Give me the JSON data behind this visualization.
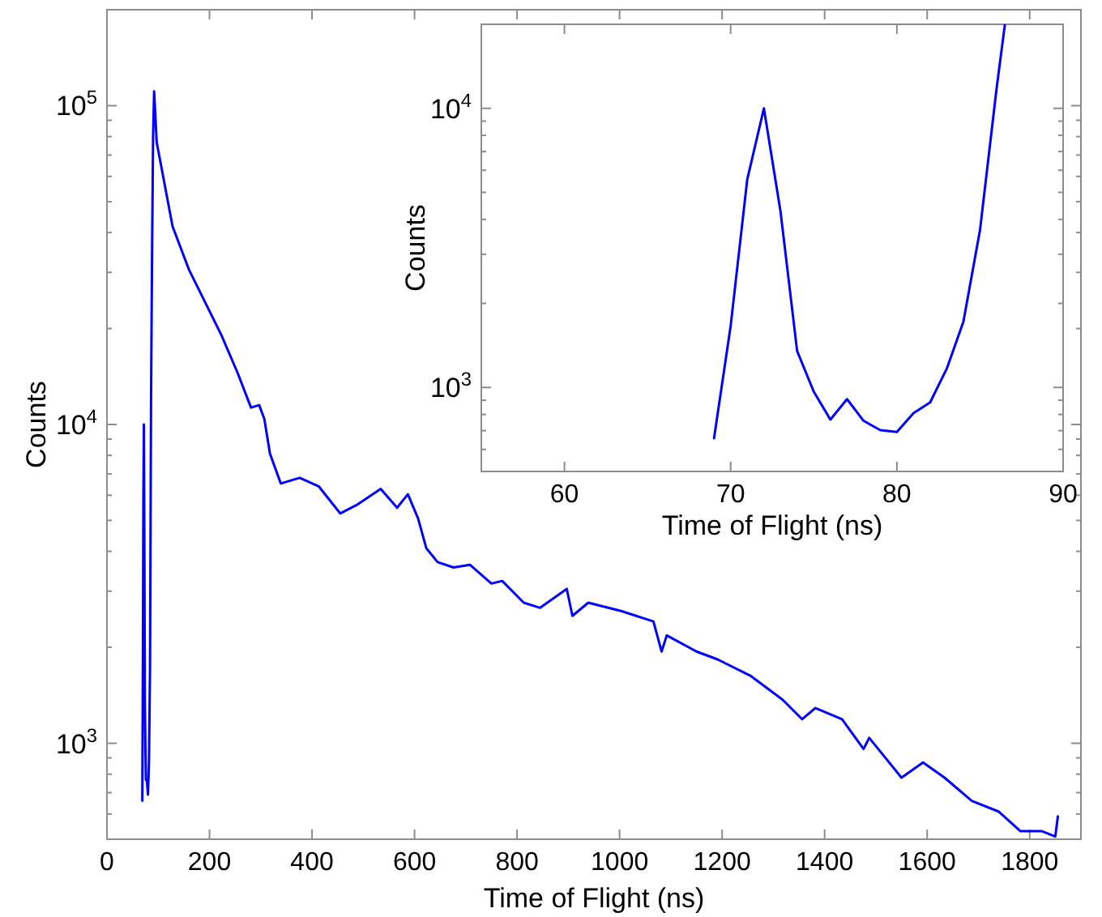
{
  "chart_data": [
    {
      "type": "line",
      "xlabel": "Time of Flight (ns)",
      "ylabel": "Counts",
      "log": "y",
      "grid": false,
      "marker": "none",
      "line_style": "solid",
      "xlim": [
        0,
        1900
      ],
      "xticks": [
        0,
        200,
        400,
        600,
        800,
        1000,
        1200,
        1400,
        1600,
        1800
      ],
      "ylim": [
        500,
        200000
      ],
      "yticks": [
        {
          "value": 600,
          "label": null
        },
        {
          "value": 700,
          "label": null
        },
        {
          "value": 800,
          "label": null
        },
        {
          "value": 900,
          "label": null
        },
        {
          "value": 1000,
          "label": "10$^{3}$"
        },
        {
          "value": 2000,
          "label": null
        },
        {
          "value": 3000,
          "label": null
        },
        {
          "value": 4000,
          "label": null
        },
        {
          "value": 5000,
          "label": null
        },
        {
          "value": 6000,
          "label": null
        },
        {
          "value": 7000,
          "label": null
        },
        {
          "value": 8000,
          "label": null
        },
        {
          "value": 9000,
          "label": null
        },
        {
          "value": 10000,
          "label": "10$^{4}$"
        },
        {
          "value": 20000,
          "label": null
        },
        {
          "value": 30000,
          "label": null
        },
        {
          "value": 40000,
          "label": null
        },
        {
          "value": 50000,
          "label": null
        },
        {
          "value": 60000,
          "label": null
        },
        {
          "value": 70000,
          "label": null
        },
        {
          "value": 80000,
          "label": null
        },
        {
          "value": 90000,
          "label": null
        },
        {
          "value": 100000,
          "label": "10$^{5}$"
        }
      ],
      "series": [
        {
          "color": "#0000ff",
          "x": [
            69,
            70,
            71,
            72,
            73,
            74,
            75,
            76,
            78,
            80,
            82,
            84,
            86,
            88,
            90,
            92,
            97,
            128,
            160,
            223,
            255,
            281,
            297,
            307,
            318,
            339,
            376,
            413,
            455,
            487,
            534,
            566,
            587,
            607,
            623,
            645,
            676,
            708,
            750,
            771,
            813,
            845,
            897,
            908,
            939,
            1003,
            1066,
            1082,
            1092,
            1150,
            1192,
            1255,
            1318,
            1356,
            1382,
            1434,
            1476,
            1487,
            1550,
            1592,
            1634,
            1687,
            1740,
            1782,
            1824,
            1850,
            1855
          ],
          "values": [
            660,
            1660,
            5570,
            10000,
            4270,
            1350,
            970,
            770,
            760,
            690,
            880,
            1720,
            11800,
            35000,
            80000,
            111000,
            76800,
            41800,
            30600,
            19100,
            14500,
            11300,
            11500,
            10400,
            8100,
            6530,
            6800,
            6400,
            5260,
            5590,
            6280,
            5480,
            6040,
            5070,
            4090,
            3700,
            3560,
            3630,
            3170,
            3230,
            2760,
            2660,
            3050,
            2510,
            2760,
            2600,
            2410,
            1940,
            2180,
            1940,
            1830,
            1630,
            1370,
            1190,
            1290,
            1190,
            960,
            1040,
            780,
            870,
            780,
            660,
            610,
            530,
            530,
            510,
            590
          ]
        }
      ]
    },
    {
      "type": "line",
      "xlabel": "Time of Flight (ns)",
      "ylabel": "Counts",
      "log": "y",
      "grid": false,
      "marker": "none",
      "line_style": "solid",
      "xlim": [
        55,
        90
      ],
      "xticks": [
        60,
        70,
        80,
        90
      ],
      "ylim": [
        500,
        20000
      ],
      "yticks": [
        {
          "value": 600,
          "label": null
        },
        {
          "value": 700,
          "label": null
        },
        {
          "value": 800,
          "label": null
        },
        {
          "value": 900,
          "label": null
        },
        {
          "value": 1000,
          "label": "10$^{3}$"
        },
        {
          "value": 2000,
          "label": null
        },
        {
          "value": 3000,
          "label": null
        },
        {
          "value": 4000,
          "label": null
        },
        {
          "value": 5000,
          "label": null
        },
        {
          "value": 6000,
          "label": null
        },
        {
          "value": 7000,
          "label": null
        },
        {
          "value": 8000,
          "label": null
        },
        {
          "value": 9000,
          "label": null
        },
        {
          "value": 10000,
          "label": "10$^{4}$"
        }
      ],
      "series": [
        {
          "color": "#0000ff",
          "x": [
            69,
            70,
            71,
            72,
            73,
            74,
            75,
            76,
            77,
            78,
            79,
            80,
            81,
            82,
            83,
            84,
            85,
            86,
            86.5
          ],
          "values": [
            658,
            1660,
            5570,
            10000,
            4270,
            1350,
            966,
            767,
            908,
            759,
            703,
            693,
            809,
            884,
            1167,
            1718,
            3660,
            11800,
            20000
          ]
        }
      ]
    }
  ]
}
